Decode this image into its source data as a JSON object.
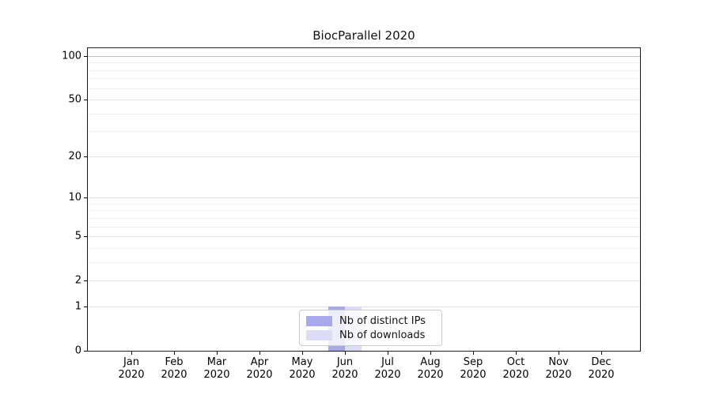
{
  "chart_data": {
    "type": "bar",
    "title": "BiocParallel 2020",
    "x_months": [
      "Jan",
      "Feb",
      "Mar",
      "Apr",
      "May",
      "Jun",
      "Jul",
      "Aug",
      "Sep",
      "Oct",
      "Nov",
      "Dec"
    ],
    "x_year": "2020",
    "categories": [
      "Jan 2020",
      "Feb 2020",
      "Mar 2020",
      "Apr 2020",
      "May 2020",
      "Jun 2020",
      "Jul 2020",
      "Aug 2020",
      "Sep 2020",
      "Oct 2020",
      "Nov 2020",
      "Dec 2020"
    ],
    "series": [
      {
        "name": "Nb of distinct IPs",
        "color": "#a8a8ec",
        "values": [
          0,
          0,
          0,
          0,
          0,
          1,
          0,
          0,
          0,
          0,
          0,
          0
        ]
      },
      {
        "name": "Nb of downloads",
        "color": "#dcdcf7",
        "values": [
          0,
          0,
          0,
          0,
          0,
          1,
          0,
          0,
          0,
          0,
          0,
          0
        ]
      }
    ],
    "y_scale": "log1p",
    "y_ticks": [
      0,
      1,
      2,
      5,
      10,
      20,
      50,
      100
    ],
    "y_gridlines": [
      1,
      2,
      3,
      4,
      5,
      6,
      7,
      8,
      9,
      10,
      20,
      30,
      40,
      50,
      60,
      70,
      80,
      90,
      100
    ],
    "ylim": [
      0,
      113
    ],
    "xlabel": "",
    "ylabel": "",
    "grid": true,
    "legend_position": "lower center",
    "colors": {
      "spine": "#1a1a1a",
      "grid_minor": "#f0f0f0",
      "grid_major": "#e2e2e2",
      "grid_100": "#bdbdbd",
      "legend_border": "#cccccc"
    }
  }
}
